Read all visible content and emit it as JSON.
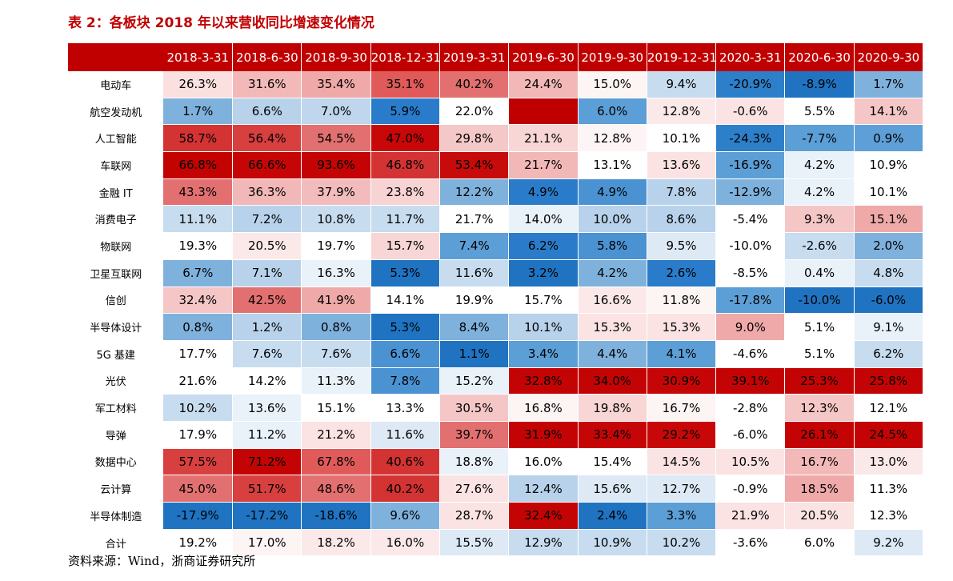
{
  "title": "表 2：各板块 2018 年以来营收同比增速变化情况",
  "source": "资料来源：Wind，浙商证券研究所",
  "columns": [
    "2018-3-31",
    "2018-6-30",
    "2018-9-30",
    "2018-12-31",
    "2019-3-31",
    "2019-6-30",
    "2019-9-30",
    "2019-12-31",
    "2020-3-31",
    "2020-6-30",
    "2020-9-30"
  ],
  "rows": [
    {
      "label": "电动车",
      "values": [
        "26.3%",
        "31.6%",
        "35.4%",
        "35.1%",
        "40.2%",
        "24.4%",
        "15.0%",
        "9.4%",
        "-20.9%",
        "-8.9%",
        "1.7%"
      ],
      "colors": [
        "#fbe0e0",
        "#f3b9b9",
        "#f0a9a9",
        "#e05a5a",
        "#e37070",
        "#f2b7b7",
        "#fdf4f4",
        "#c7dcef",
        "#2e7fc9",
        "#1f73c1",
        "#7fb1dd"
      ]
    },
    {
      "label": "航空发动机",
      "values": [
        "1.7%",
        "6.6%",
        "7.0%",
        "5.9%",
        "22.0%",
        "",
        "6.0%",
        "12.8%",
        "-0.6%",
        "5.5%",
        "14.1%"
      ],
      "colors": [
        "#7fb1dd",
        "#b7d2ea",
        "#bfd6ec",
        "#2a7ccb",
        "#ffffff",
        "#c00000",
        "#5c9ed6",
        "#fbe9e9",
        "#fbe3e3",
        "#ffffff",
        "#f5c6c6"
      ]
    },
    {
      "label": "人工智能",
      "values": [
        "58.7%",
        "56.4%",
        "54.5%",
        "47.0%",
        "29.8%",
        "21.1%",
        "12.8%",
        "10.1%",
        "-24.3%",
        "-7.7%",
        "0.9%"
      ],
      "colors": [
        "#d33333",
        "#d83f3f",
        "#e27070",
        "#c80808",
        "#f5c8c8",
        "#f8d6d6",
        "#fdf5f5",
        "#ffffff",
        "#2e7fc9",
        "#5c9ed6",
        "#5e9fd7"
      ]
    },
    {
      "label": "车联网",
      "values": [
        "66.8%",
        "66.6%",
        "93.6%",
        "46.8%",
        "53.4%",
        "21.7%",
        "13.1%",
        "13.6%",
        "-16.9%",
        "4.2%",
        "10.9%"
      ],
      "colors": [
        "#c30202",
        "#c60606",
        "#c40404",
        "#d33333",
        "#c70a0a",
        "#f2b7b7",
        "#ffffff",
        "#fbe3e3",
        "#5c9ed6",
        "#e9f1f9",
        "#ffffff"
      ]
    },
    {
      "label": "金融 IT",
      "values": [
        "43.3%",
        "36.3%",
        "37.9%",
        "23.8%",
        "12.2%",
        "4.9%",
        "4.9%",
        "7.8%",
        "-12.9%",
        "4.2%",
        "10.1%"
      ],
      "colors": [
        "#e27070",
        "#f2b7b7",
        "#f3bcbc",
        "#f8d3d3",
        "#7fb1dd",
        "#2a7ccb",
        "#4b92d3",
        "#b7d2ea",
        "#7fb1dd",
        "#e9f1f9",
        "#ffffff"
      ]
    },
    {
      "label": "消费电子",
      "values": [
        "11.1%",
        "7.2%",
        "10.8%",
        "11.7%",
        "21.7%",
        "14.0%",
        "10.0%",
        "8.6%",
        "-5.4%",
        "9.3%",
        "15.1%"
      ],
      "colors": [
        "#c7dcef",
        "#b7d2ea",
        "#c7dcef",
        "#c7dcef",
        "#ffffff",
        "#e9f1f9",
        "#b7d2ea",
        "#b7d2ea",
        "#ffffff",
        "#f5c6c6",
        "#f0a9a9"
      ]
    },
    {
      "label": "物联网",
      "values": [
        "19.3%",
        "20.5%",
        "19.7%",
        "15.7%",
        "7.4%",
        "6.2%",
        "5.8%",
        "9.5%",
        "-10.0%",
        "-2.6%",
        "2.0%"
      ],
      "colors": [
        "#ffffff",
        "#fbe9e9",
        "#ffffff",
        "#f8d6d6",
        "#5c9ed6",
        "#2a7ccb",
        "#4b92d3",
        "#dde9f5",
        "#ffffff",
        "#c7dcef",
        "#7fb1dd"
      ]
    },
    {
      "label": "卫星互联网",
      "values": [
        "6.7%",
        "7.1%",
        "16.3%",
        "5.3%",
        "11.6%",
        "3.2%",
        "4.2%",
        "2.6%",
        "-8.5%",
        "0.4%",
        "4.8%"
      ],
      "colors": [
        "#7fb1dd",
        "#b7d2ea",
        "#e9f1f9",
        "#1f73c1",
        "#c7dcef",
        "#1f73c1",
        "#7fb1dd",
        "#2a7ccb",
        "#ffffff",
        "#e9f1f9",
        "#c7dcef"
      ]
    },
    {
      "label": "信创",
      "values": [
        "32.4%",
        "42.5%",
        "41.9%",
        "14.1%",
        "19.9%",
        "15.7%",
        "16.6%",
        "11.8%",
        "-17.8%",
        "-10.0%",
        "-6.0%"
      ],
      "colors": [
        "#f5c6c6",
        "#e37070",
        "#f0a9a9",
        "#ffffff",
        "#ffffff",
        "#ffffff",
        "#fbe9e9",
        "#fdf4f4",
        "#5c9ed6",
        "#1f73c1",
        "#1f73c1"
      ]
    },
    {
      "label": "半导体设计",
      "values": [
        "0.8%",
        "1.2%",
        "0.8%",
        "5.3%",
        "8.4%",
        "10.1%",
        "15.3%",
        "15.3%",
        "9.0%",
        "5.1%",
        "9.1%"
      ],
      "colors": [
        "#7fb1dd",
        "#b7d2ea",
        "#7fb1dd",
        "#1f73c1",
        "#7fb1dd",
        "#b7d2ea",
        "#fbe3e3",
        "#fbe3e3",
        "#f0a9a9",
        "#ffffff",
        "#e9f1f9"
      ]
    },
    {
      "label": "5G 基建",
      "values": [
        "17.7%",
        "7.6%",
        "7.6%",
        "6.6%",
        "1.1%",
        "3.4%",
        "4.4%",
        "4.1%",
        "-4.6%",
        "5.1%",
        "6.2%"
      ],
      "colors": [
        "#ffffff",
        "#c7dcef",
        "#c7dcef",
        "#4b92d3",
        "#1f73c1",
        "#5c9ed6",
        "#7fb1dd",
        "#5c9ed6",
        "#ffffff",
        "#ffffff",
        "#c7dcef"
      ]
    },
    {
      "label": "光伏",
      "values": [
        "21.6%",
        "14.2%",
        "11.3%",
        "7.8%",
        "15.2%",
        "32.8%",
        "34.0%",
        "30.9%",
        "39.1%",
        "25.3%",
        "25.8%"
      ],
      "colors": [
        "#ffffff",
        "#ffffff",
        "#e9f1f9",
        "#4b92d3",
        "#e9f1f9",
        "#c40404",
        "#c40404",
        "#c60606",
        "#c40404",
        "#c40404",
        "#c40404"
      ]
    },
    {
      "label": "军工材料",
      "values": [
        "10.2%",
        "13.6%",
        "15.1%",
        "13.3%",
        "30.5%",
        "16.8%",
        "19.8%",
        "16.7%",
        "-2.8%",
        "12.3%",
        "12.1%"
      ],
      "colors": [
        "#c7dcef",
        "#e9f1f9",
        "#ffffff",
        "#ffffff",
        "#f5c6c6",
        "#fdf4f4",
        "#f8d6d6",
        "#fdf4f4",
        "#ffffff",
        "#f5c6c6",
        "#ffffff"
      ]
    },
    {
      "label": "导弹",
      "values": [
        "17.9%",
        "11.2%",
        "21.2%",
        "11.6%",
        "39.7%",
        "31.9%",
        "33.4%",
        "29.2%",
        "-6.0%",
        "26.1%",
        "24.5%"
      ],
      "colors": [
        "#ffffff",
        "#e9f1f9",
        "#fbe3e3",
        "#dde9f5",
        "#e37070",
        "#c40404",
        "#c60606",
        "#c80808",
        "#ffffff",
        "#c40404",
        "#c40404"
      ]
    },
    {
      "label": "数据中心",
      "values": [
        "57.5%",
        "71.2%",
        "67.8%",
        "40.6%",
        "18.8%",
        "16.0%",
        "15.4%",
        "14.5%",
        "10.5%",
        "16.7%",
        "13.0%"
      ],
      "colors": [
        "#d83f3f",
        "#c40404",
        "#e05a5a",
        "#d33333",
        "#e9f1f9",
        "#ffffff",
        "#ffffff",
        "#fbe3e3",
        "#fbe3e3",
        "#f3b9b9",
        "#fbe9e9"
      ]
    },
    {
      "label": "云计算",
      "values": [
        "45.0%",
        "51.7%",
        "48.6%",
        "40.2%",
        "27.6%",
        "12.4%",
        "15.6%",
        "12.7%",
        "-0.9%",
        "18.5%",
        "11.3%"
      ],
      "colors": [
        "#e27070",
        "#d83f3f",
        "#e37070",
        "#d33333",
        "#fbe3e3",
        "#b7d2ea",
        "#dde9f5",
        "#dde9f5",
        "#ffffff",
        "#f0a9a9",
        "#ffffff"
      ]
    },
    {
      "label": "半导体制造",
      "values": [
        "-17.9%",
        "-17.2%",
        "-18.6%",
        "9.6%",
        "28.7%",
        "32.4%",
        "2.4%",
        "3.3%",
        "21.9%",
        "20.5%",
        "12.3%"
      ],
      "colors": [
        "#1f73c1",
        "#1f73c1",
        "#1f73c1",
        "#7fb1dd",
        "#fbe3e3",
        "#c40404",
        "#1f73c1",
        "#5c9ed6",
        "#fbe3e3",
        "#fbe3e3",
        "#ffffff"
      ]
    },
    {
      "label": "合计",
      "values": [
        "19.2%",
        "17.0%",
        "18.2%",
        "16.0%",
        "15.5%",
        "12.9%",
        "10.9%",
        "10.2%",
        "-3.6%",
        "6.0%",
        "9.2%"
      ],
      "colors": [
        "#ffffff",
        "#fdf4f4",
        "#fbe9e9",
        "#fbe9e9",
        "#dde9f5",
        "#c7dcef",
        "#c7dcef",
        "#c7dcef",
        "#ffffff",
        "#ffffff",
        "#dde9f5"
      ]
    }
  ]
}
